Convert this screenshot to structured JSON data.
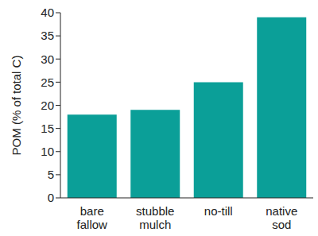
{
  "chart_data": {
    "type": "bar",
    "y_label": "POM (% of total C)",
    "categories": [
      "bare fallow",
      "stubble mulch",
      "no-till",
      "native sod"
    ],
    "values": [
      18,
      19,
      25,
      39
    ],
    "color": "#0b9f98",
    "ylim": [
      0,
      40
    ],
    "yticks": [
      0,
      5,
      10,
      15,
      20,
      25,
      30,
      35,
      40
    ],
    "grid": false
  }
}
